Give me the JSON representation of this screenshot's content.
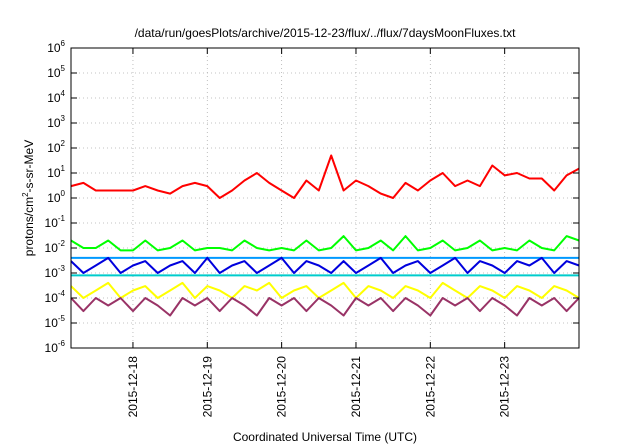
{
  "chart_data": {
    "type": "line",
    "title": "/data/run/goesPlots/archive/2015-12-23/flux/../flux/7daysMoonFluxes.txt",
    "xlabel": "Coordinated Universal Time (UTC)",
    "ylabel": {
      "base": "protons/cm",
      "sup": "2",
      "rest": "-s-sr-MeV"
    },
    "yscale": "log",
    "ylim": [
      1e-06,
      1000000.0
    ],
    "y_ticks": [
      {
        "base": "10",
        "exp": "-6",
        "value": 1e-06
      },
      {
        "base": "10",
        "exp": "-5",
        "value": 1e-05
      },
      {
        "base": "10",
        "exp": "-4",
        "value": 0.0001
      },
      {
        "base": "10",
        "exp": "-3",
        "value": 0.001
      },
      {
        "base": "10",
        "exp": "-2",
        "value": 0.01
      },
      {
        "base": "10",
        "exp": "-1",
        "value": 0.1
      },
      {
        "base": "10",
        "exp": "0",
        "value": 1
      },
      {
        "base": "10",
        "exp": "1",
        "value": 10
      },
      {
        "base": "10",
        "exp": "2",
        "value": 100
      },
      {
        "base": "10",
        "exp": "3",
        "value": 1000
      },
      {
        "base": "10",
        "exp": "4",
        "value": 10000
      },
      {
        "base": "10",
        "exp": "5",
        "value": 100000
      },
      {
        "base": "10",
        "exp": "6",
        "value": 1000000
      }
    ],
    "xlim": [
      "2015-12-17T04:00",
      "2015-12-24T00:00"
    ],
    "x_ticks": [
      {
        "label": "2015-12-18",
        "value": "2015-12-18T00:00"
      },
      {
        "label": "2015-12-19",
        "value": "2015-12-19T00:00"
      },
      {
        "label": "2015-12-20",
        "value": "2015-12-20T00:00"
      },
      {
        "label": "2015-12-21",
        "value": "2015-12-21T00:00"
      },
      {
        "label": "2015-12-22",
        "value": "2015-12-22T00:00"
      },
      {
        "label": "2015-12-23",
        "value": "2015-12-23T00:00"
      }
    ],
    "grid": true,
    "x": [
      "2015-12-17T04:00",
      "2015-12-17T08:00",
      "2015-12-17T12:00",
      "2015-12-17T16:00",
      "2015-12-17T20:00",
      "2015-12-18T00:00",
      "2015-12-18T04:00",
      "2015-12-18T08:00",
      "2015-12-18T12:00",
      "2015-12-18T16:00",
      "2015-12-18T20:00",
      "2015-12-19T00:00",
      "2015-12-19T04:00",
      "2015-12-19T08:00",
      "2015-12-19T12:00",
      "2015-12-19T16:00",
      "2015-12-19T20:00",
      "2015-12-20T00:00",
      "2015-12-20T04:00",
      "2015-12-20T08:00",
      "2015-12-20T12:00",
      "2015-12-20T16:00",
      "2015-12-20T20:00",
      "2015-12-21T00:00",
      "2015-12-21T04:00",
      "2015-12-21T08:00",
      "2015-12-21T12:00",
      "2015-12-21T16:00",
      "2015-12-21T20:00",
      "2015-12-22T00:00",
      "2015-12-22T04:00",
      "2015-12-22T08:00",
      "2015-12-22T12:00",
      "2015-12-22T16:00",
      "2015-12-22T20:00",
      "2015-12-23T00:00",
      "2015-12-23T04:00",
      "2015-12-23T08:00",
      "2015-12-23T12:00",
      "2015-12-23T16:00",
      "2015-12-23T20:00",
      "2015-12-24T00:00"
    ],
    "series": [
      {
        "color": "#ff0000",
        "values": [
          3,
          4,
          2,
          2,
          2,
          2,
          3,
          2,
          1.5,
          3,
          4,
          3,
          1,
          2,
          5,
          10,
          4,
          2,
          1,
          5,
          2,
          50,
          2,
          5,
          3,
          1.5,
          1,
          4,
          2,
          5,
          10,
          3,
          5,
          3,
          20,
          8,
          10,
          6,
          6,
          2,
          8,
          15
        ]
      },
      {
        "color": "#00ff00",
        "values": [
          0.02,
          0.01,
          0.01,
          0.02,
          0.008,
          0.008,
          0.02,
          0.008,
          0.01,
          0.02,
          0.008,
          0.01,
          0.01,
          0.008,
          0.02,
          0.01,
          0.008,
          0.01,
          0.008,
          0.02,
          0.008,
          0.01,
          0.03,
          0.008,
          0.01,
          0.02,
          0.008,
          0.03,
          0.008,
          0.01,
          0.02,
          0.008,
          0.01,
          0.02,
          0.008,
          0.01,
          0.008,
          0.02,
          0.01,
          0.008,
          0.03,
          0.02
        ]
      },
      {
        "color": "#0099ff",
        "values": [
          0.004,
          0.004,
          0.004,
          0.004,
          0.004,
          0.004,
          0.004,
          0.004,
          0.004,
          0.004,
          0.004,
          0.004,
          0.004,
          0.004,
          0.004,
          0.004,
          0.004,
          0.004,
          0.004,
          0.004,
          0.004,
          0.004,
          0.004,
          0.004,
          0.004,
          0.004,
          0.004,
          0.004,
          0.004,
          0.004,
          0.004,
          0.004,
          0.004,
          0.004,
          0.004,
          0.004,
          0.004,
          0.004,
          0.004,
          0.004,
          0.004,
          0.004
        ]
      },
      {
        "color": "#0000dd",
        "values": [
          0.003,
          0.001,
          0.002,
          0.004,
          0.001,
          0.002,
          0.003,
          0.001,
          0.002,
          0.003,
          0.001,
          0.004,
          0.001,
          0.002,
          0.003,
          0.001,
          0.002,
          0.004,
          0.001,
          0.003,
          0.002,
          0.001,
          0.003,
          0.001,
          0.002,
          0.004,
          0.001,
          0.002,
          0.003,
          0.001,
          0.002,
          0.004,
          0.001,
          0.003,
          0.002,
          0.001,
          0.003,
          0.002,
          0.004,
          0.001,
          0.003,
          0.002
        ]
      },
      {
        "color": "#00cccc",
        "values": [
          0.0008,
          0.0008,
          0.0008,
          0.0008,
          0.0008,
          0.0008,
          0.0008,
          0.0008,
          0.0008,
          0.0008,
          0.0008,
          0.0008,
          0.0008,
          0.0008,
          0.0008,
          0.0008,
          0.0008,
          0.0008,
          0.0008,
          0.0008,
          0.0008,
          0.0008,
          0.0008,
          0.0008,
          0.0008,
          0.0008,
          0.0008,
          0.0008,
          0.0008,
          0.0008,
          0.0008,
          0.0008,
          0.0008,
          0.0008,
          0.0008,
          0.0008,
          0.0008,
          0.0008,
          0.0008,
          0.0008,
          0.0008,
          0.0008
        ]
      },
      {
        "color": "#ffff00",
        "values": [
          0.0003,
          0.0001,
          0.0002,
          0.0004,
          0.0001,
          0.0002,
          0.0003,
          0.0001,
          0.0002,
          0.0004,
          0.0001,
          0.0003,
          0.0002,
          0.0001,
          0.0003,
          0.0002,
          0.0004,
          0.0001,
          0.0002,
          0.0003,
          0.0001,
          0.0002,
          0.0004,
          0.0001,
          0.0003,
          0.0002,
          0.0001,
          0.0003,
          0.0002,
          0.0001,
          0.0004,
          0.0002,
          0.0001,
          0.0003,
          0.0002,
          0.0001,
          0.0003,
          0.0002,
          0.0001,
          0.0003,
          0.0002,
          0.0001
        ]
      },
      {
        "color": "#993366",
        "values": [
          0.0001,
          3e-05,
          0.0001,
          5e-05,
          0.0001,
          3e-05,
          0.0001,
          5e-05,
          2e-05,
          0.0001,
          5e-05,
          0.0001,
          3e-05,
          0.0001,
          5e-05,
          2e-05,
          0.0001,
          5e-05,
          0.0001,
          3e-05,
          0.0001,
          5e-05,
          2e-05,
          0.0001,
          5e-05,
          0.0001,
          3e-05,
          0.0001,
          5e-05,
          2e-05,
          0.0001,
          5e-05,
          0.0001,
          3e-05,
          0.0001,
          5e-05,
          2e-05,
          0.0001,
          5e-05,
          0.0001,
          3e-05,
          0.0001
        ]
      }
    ]
  }
}
